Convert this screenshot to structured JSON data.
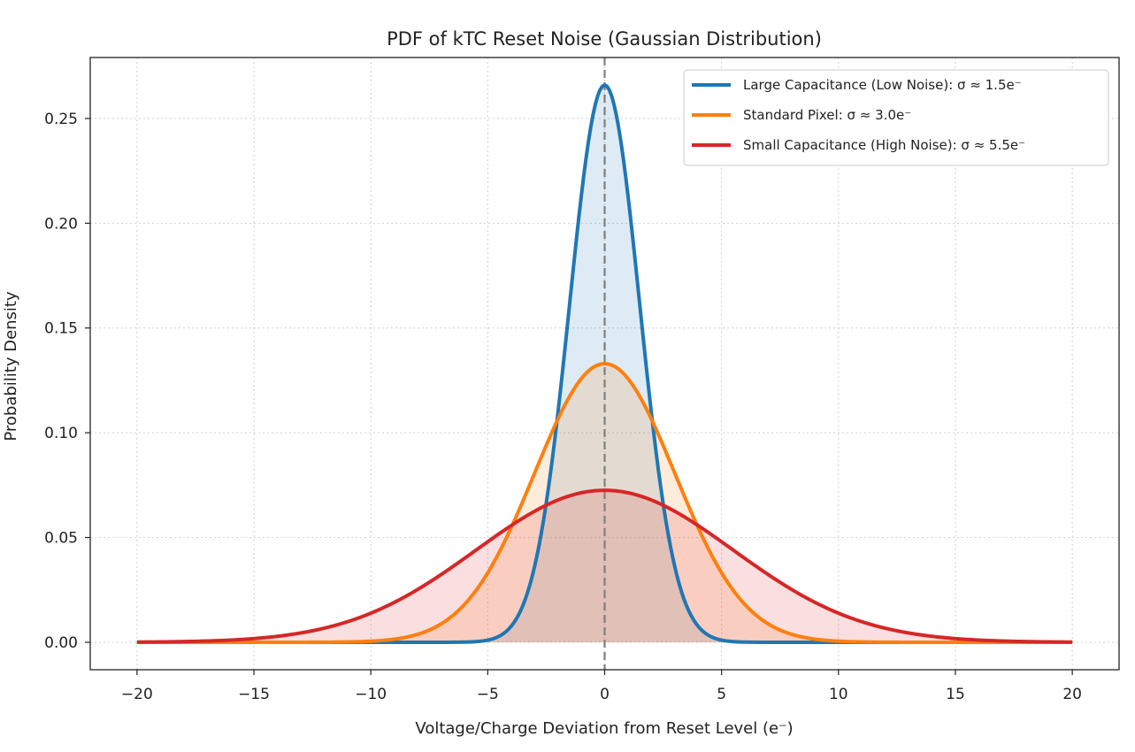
{
  "chart_data": {
    "type": "area",
    "title": "PDF of kTC Reset Noise (Gaussian Distribution)",
    "xlabel": "Voltage/Charge Deviation from Reset Level (e⁻)",
    "ylabel": "Probability Density",
    "xlim": [
      -22,
      22
    ],
    "ylim": [
      -0.0131,
      0.2791
    ],
    "xticks": [
      -20,
      -15,
      -10,
      -5,
      0,
      5,
      10,
      15,
      20
    ],
    "xtick_labels": [
      "−20",
      "−15",
      "−10",
      "−5",
      "0",
      "5",
      "10",
      "15",
      "20"
    ],
    "yticks": [
      0.0,
      0.05,
      0.1,
      0.15,
      0.2,
      0.25
    ],
    "ytick_labels": [
      "0.00",
      "0.05",
      "0.10",
      "0.15",
      "0.20",
      "0.25"
    ],
    "grid": true,
    "legend_position": "top-right",
    "x_range": [
      -20,
      20
    ],
    "reference_line": {
      "x": 0,
      "style": "dashed",
      "color": "#7f7f7f"
    },
    "series": [
      {
        "name": "Large Capacitance (Low Noise): σ ≈ 1.5e⁻",
        "mean": 0,
        "sigma": 1.5,
        "peak": 0.266,
        "color": "#1f77b4",
        "fill": true
      },
      {
        "name": "Standard Pixel: σ ≈ 3.0e⁻",
        "mean": 0,
        "sigma": 3.0,
        "peak": 0.133,
        "color": "#ff7f0e",
        "fill": true
      },
      {
        "name": "Small Capacitance (High Noise): σ ≈ 5.5e⁻",
        "mean": 0,
        "sigma": 5.5,
        "peak": 0.0725,
        "color": "#d62728",
        "fill": true
      }
    ]
  }
}
